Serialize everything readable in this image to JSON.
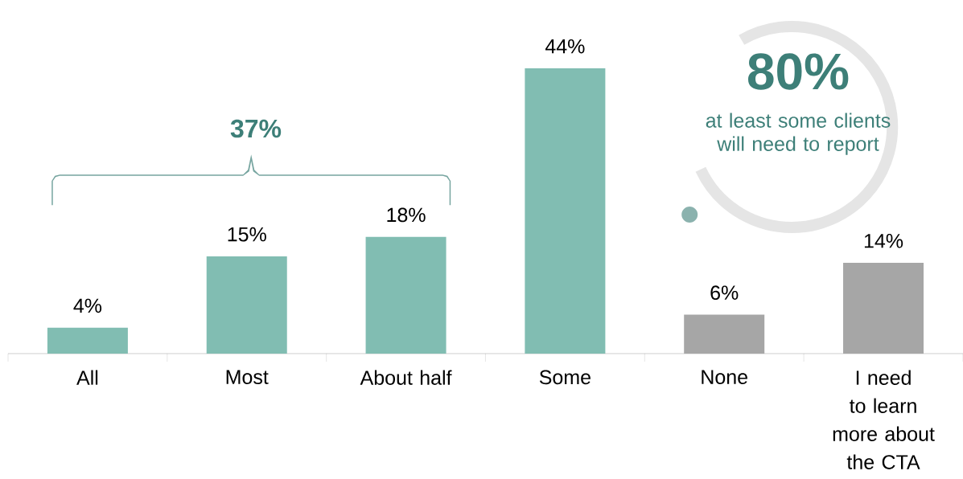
{
  "chart_data": {
    "type": "bar",
    "categories": [
      "All",
      "Most",
      "About half",
      "Some",
      "None",
      "I need to learn more about the CTA"
    ],
    "values": [
      4,
      15,
      18,
      44,
      6,
      14
    ],
    "colors": [
      "#81bdb2",
      "#81bdb2",
      "#81bdb2",
      "#81bdb2",
      "#a6a6a6",
      "#a6a6a6"
    ],
    "value_labels": [
      "4%",
      "15%",
      "18%",
      "44%",
      "6%",
      "14%"
    ],
    "annotations": [
      "37%",
      "80%",
      "at least some clients will need to report"
    ]
  }
}
